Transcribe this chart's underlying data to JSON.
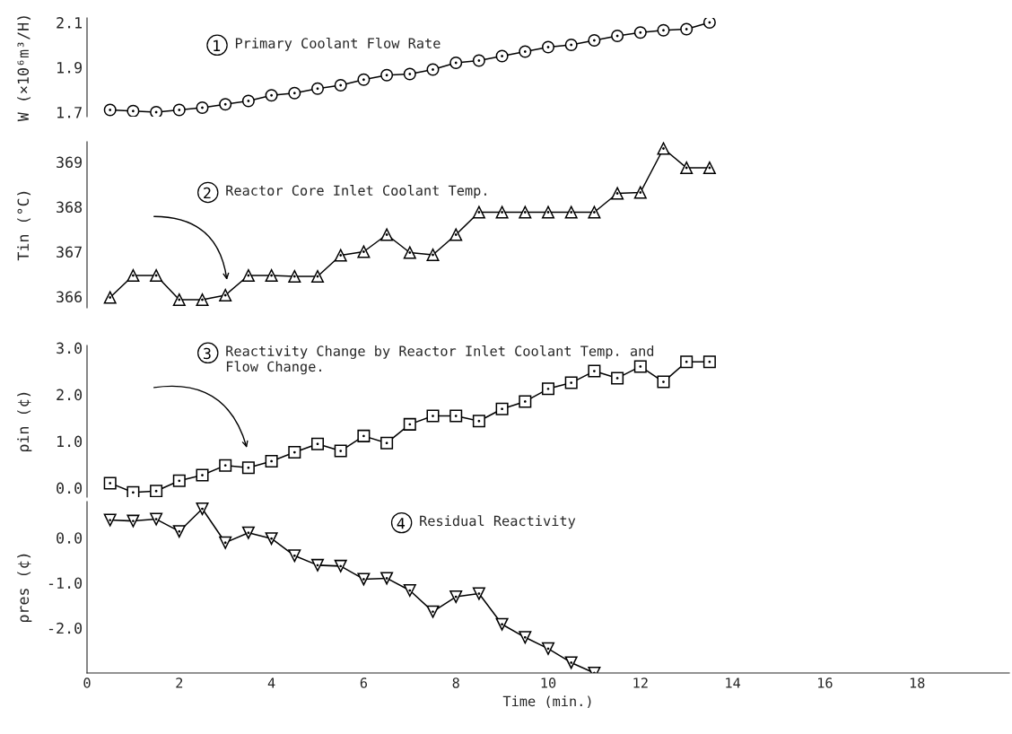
{
  "chart_data": [
    {
      "type": "line",
      "ylabel": "W (×10⁶m³/H)",
      "annotations": [
        "Primary Coolant Flow Rate"
      ],
      "marker": "circle",
      "tick_labels": "y",
      "ylim": [
        1.68,
        2.12
      ],
      "yticks": [
        1.7,
        1.9,
        2.1
      ],
      "x": [
        0.5,
        1.0,
        1.5,
        2.0,
        2.5,
        3.0,
        3.5,
        4.0,
        4.5,
        5.0,
        5.5,
        6.0,
        6.5,
        7.0,
        7.5,
        8.0,
        8.5,
        9.0,
        9.5,
        10.0,
        10.5,
        11.0,
        11.5,
        12.0,
        12.5,
        13.0,
        13.5
      ],
      "series": [
        {
          "color": "#000000",
          "values": [
            1.71,
            1.705,
            1.7,
            1.71,
            1.72,
            1.735,
            1.75,
            1.775,
            1.785,
            1.805,
            1.82,
            1.845,
            1.865,
            1.87,
            1.89,
            1.92,
            1.93,
            1.95,
            1.97,
            1.99,
            2.0,
            2.02,
            2.04,
            2.055,
            2.065,
            2.07,
            2.1
          ]
        }
      ]
    },
    {
      "type": "line",
      "ylabel": "Tin (°C)",
      "annotations": [
        "Reactor Core Inlet Coolant Temp."
      ],
      "marker": "triangle",
      "tick_labels": "y",
      "ylim": [
        365.75,
        369.45
      ],
      "yticks": [
        366,
        367,
        368,
        369
      ],
      "x": [
        0.5,
        1.0,
        1.5,
        2.0,
        2.5,
        3.0,
        3.5,
        4.0,
        4.5,
        5.0,
        5.5,
        6.0,
        6.5,
        7.0,
        7.5,
        8.0,
        8.5,
        9.0,
        9.5,
        10.0,
        10.5,
        11.0,
        11.5,
        12.0,
        12.5,
        13.0,
        13.5
      ],
      "series": [
        {
          "color": "#000000",
          "values": [
            365.98,
            366.47,
            366.47,
            365.93,
            365.93,
            366.03,
            366.47,
            366.47,
            366.45,
            366.45,
            366.92,
            367.0,
            367.38,
            366.98,
            366.93,
            367.38,
            367.88,
            367.88,
            367.88,
            367.88,
            367.88,
            367.88,
            368.3,
            368.32,
            369.3,
            368.87,
            368.87
          ]
        }
      ]
    },
    {
      "type": "line",
      "ylabel": "ρin (¢)",
      "annotations": [
        "Reactivity Change by Reactor Inlet Coolant Temp. and\nFlow Change."
      ],
      "marker": "square",
      "tick_labels": "y",
      "ylim": [
        -0.2,
        3.05
      ],
      "yticks": [
        {
          "value": 0,
          "label": "0.0"
        },
        {
          "value": 1,
          "label": "1.0"
        },
        {
          "value": 2,
          "label": "2.0"
        },
        {
          "value": 3,
          "label": "3.0"
        }
      ],
      "x": [
        0.5,
        1.0,
        1.5,
        2.0,
        2.5,
        3.0,
        3.5,
        4.0,
        4.5,
        5.0,
        5.5,
        6.0,
        6.5,
        7.0,
        7.5,
        8.0,
        8.5,
        9.0,
        9.5,
        10.0,
        10.5,
        11.0,
        11.5,
        12.0,
        12.5,
        13.0,
        13.5
      ],
      "series": [
        {
          "color": "#000000",
          "values": [
            0.1,
            -0.1,
            -0.07,
            0.15,
            0.27,
            0.48,
            0.43,
            0.57,
            0.76,
            0.94,
            0.79,
            1.11,
            0.96,
            1.36,
            1.54,
            1.54,
            1.43,
            1.69,
            1.85,
            2.12,
            2.25,
            2.5,
            2.35,
            2.6,
            2.27,
            2.7,
            2.7
          ]
        }
      ]
    },
    {
      "type": "line",
      "xlabel": "Time (min.)",
      "ylabel": "ρres (¢)",
      "annotations": [
        "Residual Reactivity"
      ],
      "marker": "triangle_down",
      "xlim": [
        0,
        20
      ],
      "ylim": [
        -3.0,
        0.8
      ],
      "yticks": [
        {
          "value": -2,
          "label": "-2.0"
        },
        {
          "value": -1,
          "label": "-1.0"
        },
        {
          "value": 0,
          "label": "0.0"
        }
      ],
      "xticks": [
        0,
        2,
        4,
        6,
        8,
        10,
        12,
        14,
        16,
        18
      ],
      "x": [
        0.5,
        1.0,
        1.5,
        2.0,
        2.5,
        3.0,
        3.5,
        4.0,
        4.5,
        5.0,
        5.5,
        6.0,
        6.5,
        7.0,
        7.5,
        8.0,
        8.5,
        9.0,
        9.5,
        10.0,
        10.5,
        11.0
      ],
      "series": [
        {
          "color": "#000000",
          "values": [
            0.39,
            0.37,
            0.41,
            0.14,
            0.64,
            -0.11,
            0.11,
            -0.02,
            -0.4,
            -0.61,
            -0.63,
            -0.92,
            -0.9,
            -1.17,
            -1.64,
            -1.31,
            -1.24,
            -1.92,
            -2.21,
            -2.46,
            -2.77,
            -3.0
          ]
        }
      ]
    }
  ]
}
